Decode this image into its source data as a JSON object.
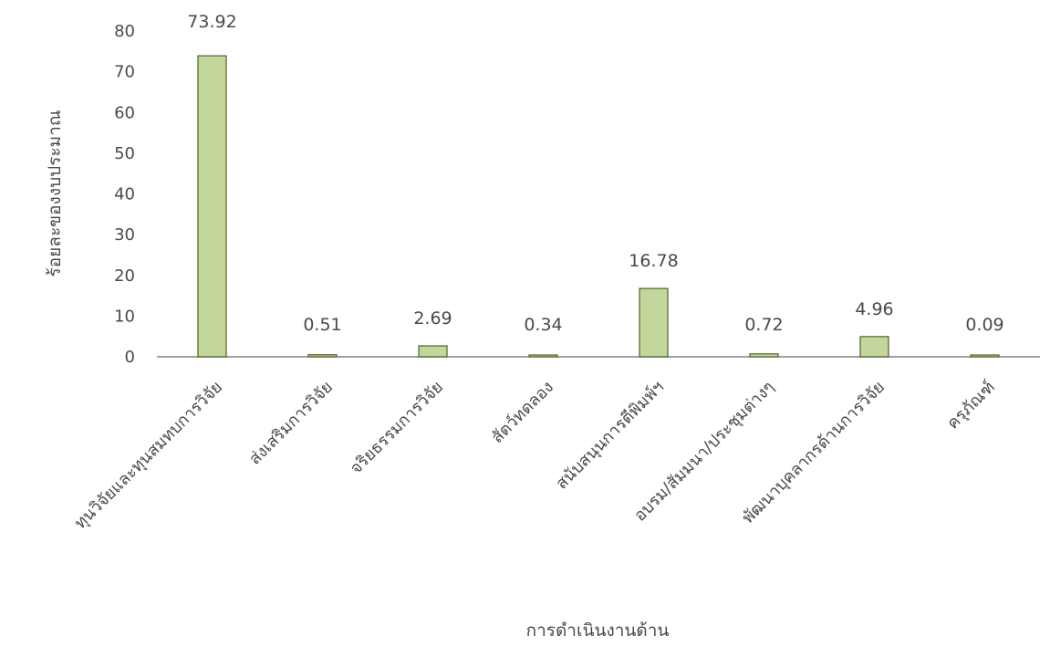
{
  "chart_data": {
    "type": "bar",
    "title": "",
    "xlabel": "การดำเนินงานด้าน",
    "ylabel": "ร้อยละของงบประมาณ",
    "ylim": [
      0,
      80
    ],
    "yticks": [
      0,
      10,
      20,
      30,
      40,
      50,
      60,
      70,
      80
    ],
    "categories": [
      "ทุนวิจัยและทุนสมทบการวิจัย",
      "ส่งเสริมการวิจัย",
      "จริยธรรมการวิจัย",
      "สัตว์ทดลอง",
      "สนับสนุนการตีพิมพ์ฯ",
      "อบรม/สัมมนา/ประชุมต่างๆ",
      "พัฒนาบุคลากรด้านการวิจัย",
      "ครุภัณฑ์"
    ],
    "series": [
      {
        "values": [
          73.92,
          0.51,
          2.69,
          0.34,
          16.78,
          0.72,
          4.96,
          0.09
        ],
        "data_labels": [
          "73.92",
          "0.51",
          "2.69",
          "0.34",
          "16.78",
          "0.72",
          "4.96",
          "0.09"
        ]
      }
    ],
    "colors": {
      "bar_fill": "#c3d69b",
      "bar_stroke": "#4f6228",
      "axis": "#808080",
      "text": "#4a4a4a"
    },
    "grid": false,
    "legend": "none"
  }
}
